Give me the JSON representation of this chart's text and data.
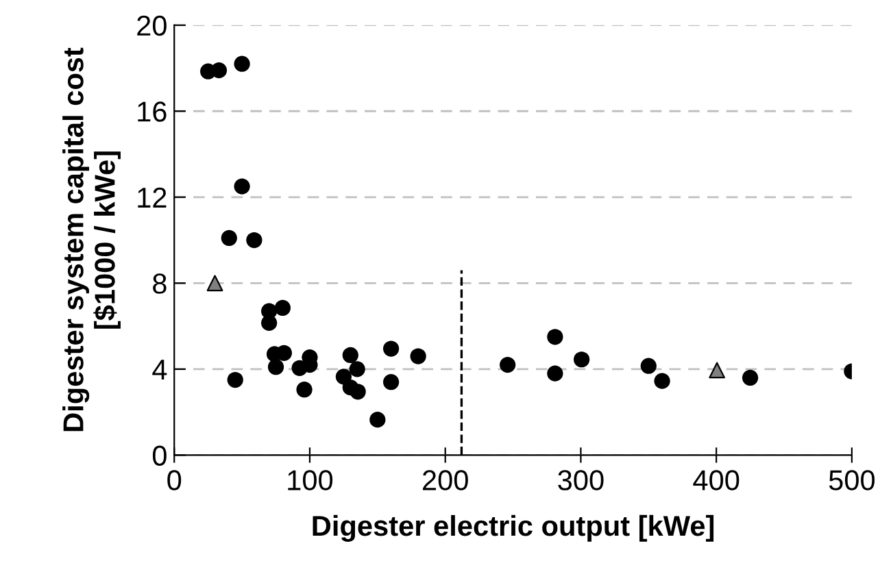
{
  "chart_data": {
    "type": "scatter",
    "xlabel": "Digester electric output [kWe]",
    "ylabel": "Digester system capital cost\n[$1000 / kWe]",
    "xlim": [
      0,
      500
    ],
    "xticks": [
      0,
      100,
      200,
      300,
      400,
      500
    ],
    "ylim": [
      0,
      20
    ],
    "yticks": [
      0,
      4,
      8,
      12,
      16,
      20
    ],
    "grid": "y",
    "legend": false,
    "series": [
      {
        "color": "#000000",
        "marker": "circle",
        "x": [
          25,
          33,
          50,
          50,
          40.5,
          59,
          70,
          70,
          80,
          74,
          81,
          75,
          45,
          100,
          92.5,
          100,
          96,
          130,
          135,
          125,
          130,
          135.5,
          150,
          160,
          160,
          180,
          246,
          281,
          281,
          300.6,
          350,
          360,
          425,
          500
        ],
        "values": [
          17.85,
          17.9,
          18.2,
          12.5,
          10.1,
          10.0,
          6.7,
          6.15,
          6.85,
          4.7,
          4.75,
          4.1,
          3.5,
          4.55,
          4.05,
          4.2,
          3.05,
          4.65,
          4.0,
          3.65,
          3.15,
          2.95,
          1.65,
          4.95,
          3.4,
          4.6,
          4.2,
          5.5,
          3.8,
          4.45,
          4.15,
          3.45,
          3.6,
          3.9
        ]
      },
      {
        "color": "#808080",
        "marker": "triangle",
        "x": [
          30,
          400.5
        ],
        "values": [
          8.0,
          3.95
        ]
      }
    ],
    "ref_lines": [
      {
        "axis": "x",
        "value": 212,
        "color": "#000000",
        "line_style": "dashed"
      }
    ]
  }
}
